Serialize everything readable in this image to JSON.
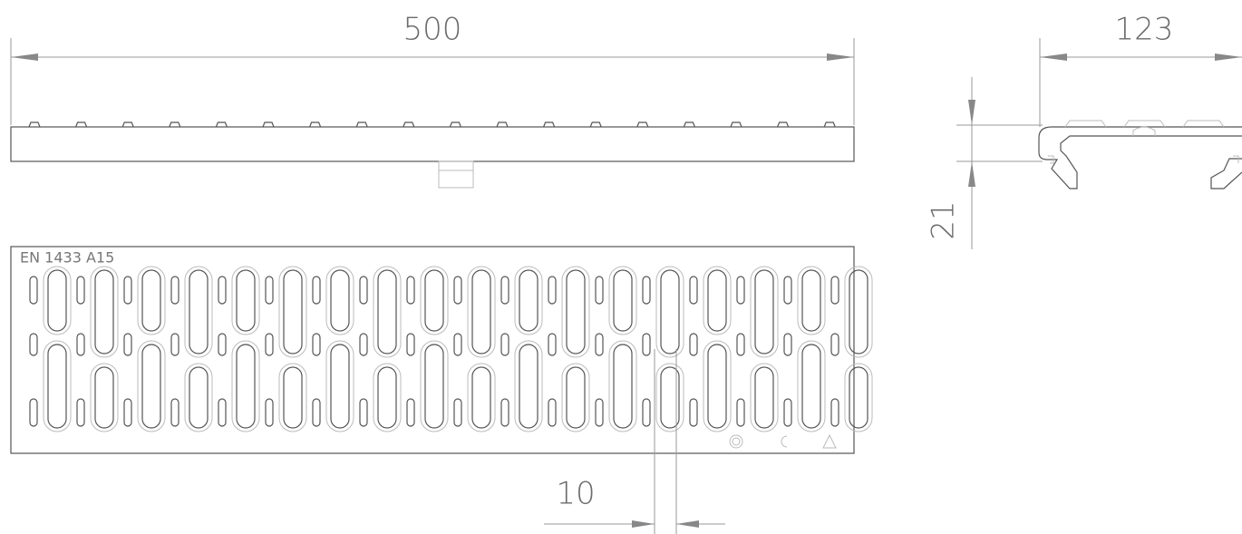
{
  "dimensions": {
    "length": "500",
    "width": "123",
    "height": "21",
    "slot_width": "10"
  },
  "marking": "EN  1433 A15"
}
